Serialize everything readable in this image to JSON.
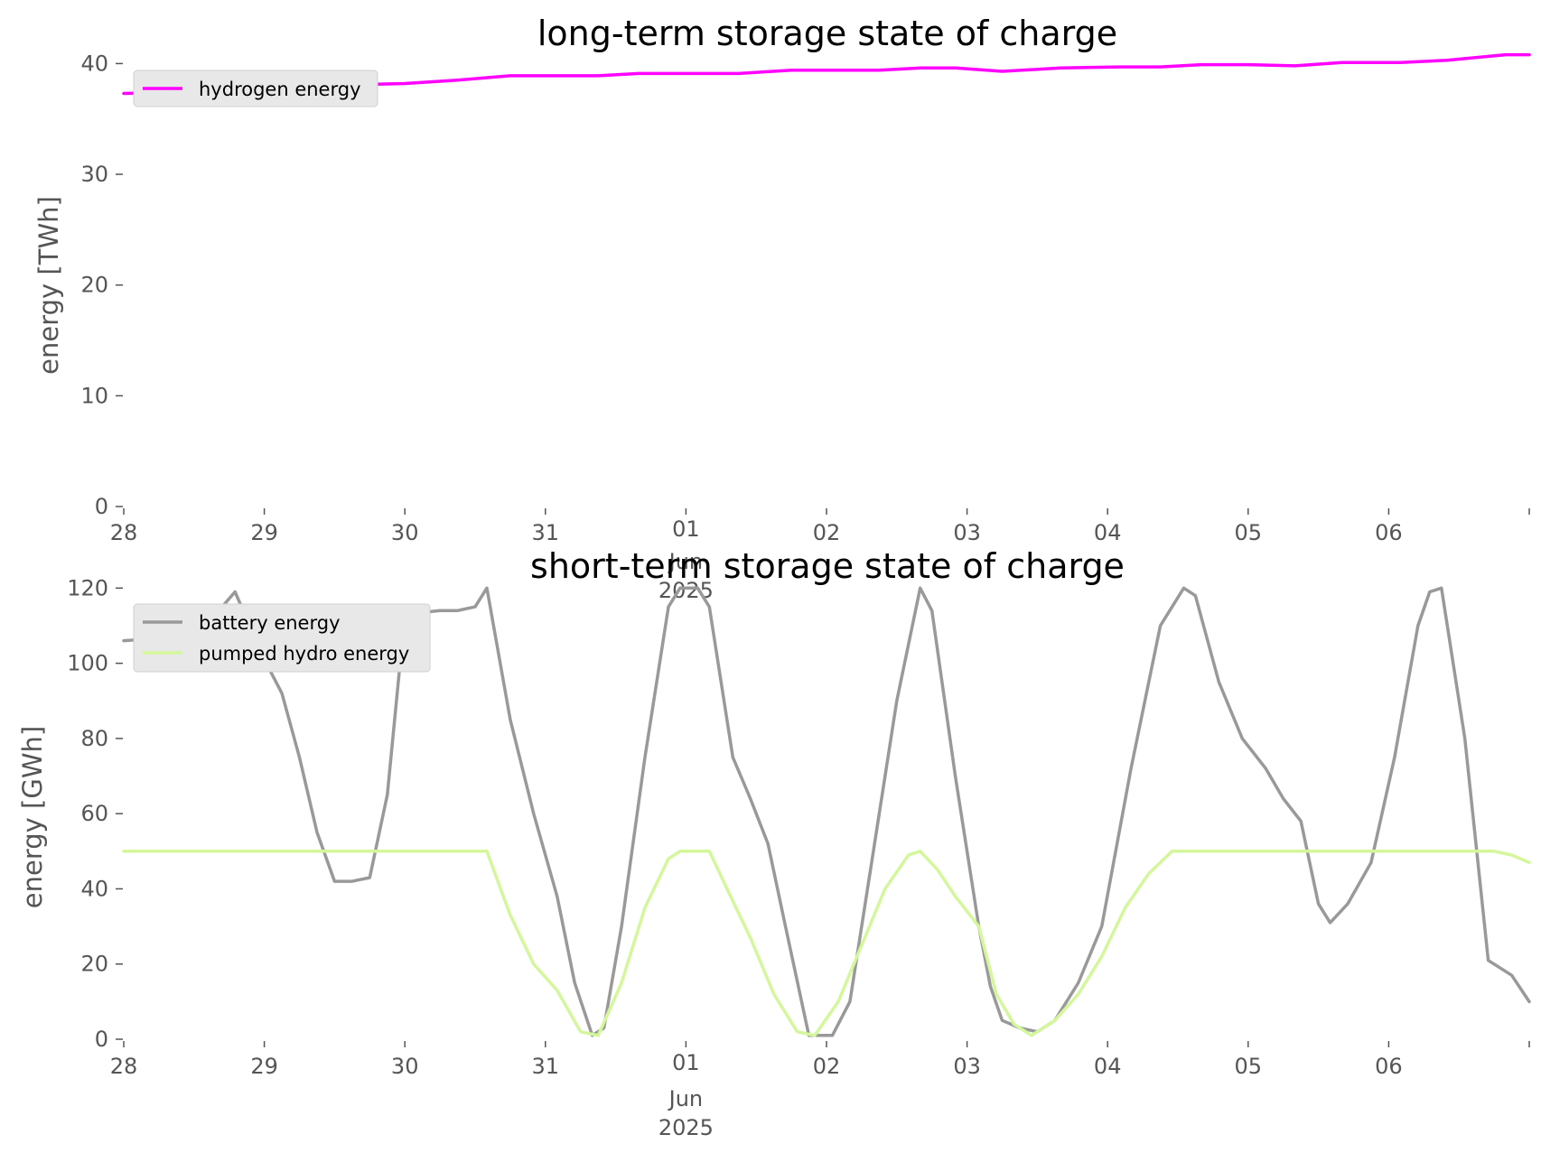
{
  "chart_data": [
    {
      "type": "line",
      "title": "long-term storage state of charge",
      "xlabel": "",
      "ylabel": "energy [TWh]",
      "ylim": [
        0,
        41.5
      ],
      "yticks": [
        0,
        10,
        20,
        30,
        40
      ],
      "xlim": [
        "2025-05-28",
        "2025-06-07"
      ],
      "xticks": [
        {
          "date": "2025-05-28",
          "label": "28"
        },
        {
          "date": "2025-05-29",
          "label": "29"
        },
        {
          "date": "2025-05-30",
          "label": "30"
        },
        {
          "date": "2025-05-31",
          "label": "31"
        },
        {
          "date": "2025-06-01",
          "label": "01",
          "sub": [
            "Jun",
            "2025"
          ]
        },
        {
          "date": "2025-06-02",
          "label": "02"
        },
        {
          "date": "2025-06-03",
          "label": "03"
        },
        {
          "date": "2025-06-04",
          "label": "04"
        },
        {
          "date": "2025-06-05",
          "label": "05"
        },
        {
          "date": "2025-06-06",
          "label": "06"
        },
        {
          "date": "2025-06-07",
          "label": ""
        }
      ],
      "grid": false,
      "legend": "top-left",
      "series": [
        {
          "name": "hydrogen energy",
          "color": "#ff00ff",
          "points": [
            [
              "2025-05-28 00:00",
              37.3
            ],
            [
              "2025-05-28 08:00",
              37.4
            ],
            [
              "2025-05-28 18:00",
              37.7
            ],
            [
              "2025-05-29 09:00",
              37.8
            ],
            [
              "2025-05-29 16:00",
              38.1
            ],
            [
              "2025-05-30 00:00",
              38.2
            ],
            [
              "2025-05-30 09:00",
              38.5
            ],
            [
              "2025-05-30 18:00",
              38.9
            ],
            [
              "2025-05-31 09:00",
              38.9
            ],
            [
              "2025-05-31 16:00",
              39.1
            ],
            [
              "2025-06-01 00:00",
              39.1
            ],
            [
              "2025-06-01 09:00",
              39.1
            ],
            [
              "2025-06-01 18:00",
              39.4
            ],
            [
              "2025-06-02 09:00",
              39.4
            ],
            [
              "2025-06-02 16:00",
              39.6
            ],
            [
              "2025-06-02 22:00",
              39.6
            ],
            [
              "2025-06-03 06:00",
              39.3
            ],
            [
              "2025-06-03 16:00",
              39.6
            ],
            [
              "2025-06-04 02:00",
              39.7
            ],
            [
              "2025-06-04 09:00",
              39.7
            ],
            [
              "2025-06-04 16:00",
              39.9
            ],
            [
              "2025-06-05 00:00",
              39.9
            ],
            [
              "2025-06-05 08:00",
              39.8
            ],
            [
              "2025-06-05 16:00",
              40.1
            ],
            [
              "2025-06-06 02:00",
              40.1
            ],
            [
              "2025-06-06 10:00",
              40.3
            ],
            [
              "2025-06-06 20:00",
              40.8
            ],
            [
              "2025-06-07 00:00",
              40.8
            ]
          ]
        }
      ]
    },
    {
      "type": "line",
      "title": "short-term storage state of charge",
      "xlabel": "",
      "ylabel": "energy [GWh]",
      "ylim": [
        0,
        122
      ],
      "yticks": [
        0,
        20,
        40,
        60,
        80,
        100,
        120
      ],
      "xlim": [
        "2025-05-28",
        "2025-06-07"
      ],
      "xticks": [
        {
          "date": "2025-05-28",
          "label": "28"
        },
        {
          "date": "2025-05-29",
          "label": "29"
        },
        {
          "date": "2025-05-30",
          "label": "30"
        },
        {
          "date": "2025-05-31",
          "label": "31"
        },
        {
          "date": "2025-06-01",
          "label": "01",
          "sub": [
            "Jun",
            "2025"
          ]
        },
        {
          "date": "2025-06-02",
          "label": "02"
        },
        {
          "date": "2025-06-03",
          "label": "03"
        },
        {
          "date": "2025-06-04",
          "label": "04"
        },
        {
          "date": "2025-06-05",
          "label": "05"
        },
        {
          "date": "2025-06-06",
          "label": "06"
        },
        {
          "date": "2025-06-07",
          "label": ""
        }
      ],
      "grid": false,
      "legend": "top-left",
      "series": [
        {
          "name": "battery energy",
          "color": "#999999",
          "points": [
            [
              "2025-05-28 00:00",
              106
            ],
            [
              "2025-05-28 09:00",
              107
            ],
            [
              "2025-05-28 14:00",
              110
            ],
            [
              "2025-05-28 19:00",
              119
            ],
            [
              "2025-05-29 00:00",
              101
            ],
            [
              "2025-05-29 03:00",
              92
            ],
            [
              "2025-05-29 06:00",
              75
            ],
            [
              "2025-05-29 09:00",
              55
            ],
            [
              "2025-05-29 12:00",
              42
            ],
            [
              "2025-05-29 15:00",
              42
            ],
            [
              "2025-05-29 18:00",
              43
            ],
            [
              "2025-05-29 21:00",
              65
            ],
            [
              "2025-05-30 00:00",
              113
            ],
            [
              "2025-05-30 06:00",
              114
            ],
            [
              "2025-05-30 09:00",
              114
            ],
            [
              "2025-05-30 12:00",
              115
            ],
            [
              "2025-05-30 14:00",
              120
            ],
            [
              "2025-05-30 18:00",
              85
            ],
            [
              "2025-05-30 22:00",
              60
            ],
            [
              "2025-05-31 02:00",
              38
            ],
            [
              "2025-05-31 05:00",
              15
            ],
            [
              "2025-05-31 08:00",
              1
            ],
            [
              "2025-05-31 10:00",
              3
            ],
            [
              "2025-05-31 13:00",
              30
            ],
            [
              "2025-05-31 17:00",
              75
            ],
            [
              "2025-05-31 21:00",
              115
            ],
            [
              "2025-05-31 23:00",
              120
            ],
            [
              "2025-06-01 02:00",
              120
            ],
            [
              "2025-06-01 04:00",
              115
            ],
            [
              "2025-06-01 08:00",
              75
            ],
            [
              "2025-06-01 11:00",
              64
            ],
            [
              "2025-06-01 14:00",
              52
            ],
            [
              "2025-06-01 17:00",
              30
            ],
            [
              "2025-06-01 21:00",
              1
            ],
            [
              "2025-06-02 01:00",
              1
            ],
            [
              "2025-06-02 04:00",
              10
            ],
            [
              "2025-06-02 08:00",
              50
            ],
            [
              "2025-06-02 12:00",
              90
            ],
            [
              "2025-06-02 16:00",
              120
            ],
            [
              "2025-06-02 18:00",
              114
            ],
            [
              "2025-06-02 22:00",
              70
            ],
            [
              "2025-06-03 02:00",
              30
            ],
            [
              "2025-06-03 04:00",
              14
            ],
            [
              "2025-06-03 06:00",
              5
            ],
            [
              "2025-06-03 09:00",
              3
            ],
            [
              "2025-06-03 12:00",
              2
            ],
            [
              "2025-06-03 15:00",
              5
            ],
            [
              "2025-06-03 19:00",
              15
            ],
            [
              "2025-06-03 23:00",
              30
            ],
            [
              "2025-06-04 04:00",
              72
            ],
            [
              "2025-06-04 09:00",
              110
            ],
            [
              "2025-06-04 13:00",
              120
            ],
            [
              "2025-06-04 15:00",
              118
            ],
            [
              "2025-06-04 19:00",
              95
            ],
            [
              "2025-06-04 23:00",
              80
            ],
            [
              "2025-06-05 03:00",
              72
            ],
            [
              "2025-06-05 06:00",
              64
            ],
            [
              "2025-06-05 09:00",
              58
            ],
            [
              "2025-06-05 12:00",
              36
            ],
            [
              "2025-06-05 14:00",
              31
            ],
            [
              "2025-06-05 17:00",
              36
            ],
            [
              "2025-06-05 21:00",
              47
            ],
            [
              "2025-06-06 01:00",
              75
            ],
            [
              "2025-06-06 05:00",
              110
            ],
            [
              "2025-06-06 07:00",
              119
            ],
            [
              "2025-06-06 09:00",
              120
            ],
            [
              "2025-06-06 13:00",
              80
            ],
            [
              "2025-06-06 17:00",
              21
            ],
            [
              "2025-06-06 21:00",
              17
            ],
            [
              "2025-06-07 00:00",
              10
            ]
          ]
        },
        {
          "name": "pumped hydro energy",
          "color": "#d4f79c",
          "points": [
            [
              "2025-05-28 00:00",
              50
            ],
            [
              "2025-05-29 00:00",
              50
            ],
            [
              "2025-05-29 12:00",
              50
            ],
            [
              "2025-05-30 00:00",
              50
            ],
            [
              "2025-05-30 14:00",
              50
            ],
            [
              "2025-05-30 18:00",
              33
            ],
            [
              "2025-05-30 22:00",
              20
            ],
            [
              "2025-05-31 02:00",
              13
            ],
            [
              "2025-05-31 06:00",
              2
            ],
            [
              "2025-05-31 09:00",
              1
            ],
            [
              "2025-05-31 13:00",
              15
            ],
            [
              "2025-05-31 17:00",
              35
            ],
            [
              "2025-05-31 21:00",
              48
            ],
            [
              "2025-05-31 23:00",
              50
            ],
            [
              "2025-06-01 04:00",
              50
            ],
            [
              "2025-06-01 07:00",
              40
            ],
            [
              "2025-06-01 11:00",
              27
            ],
            [
              "2025-06-01 15:00",
              12
            ],
            [
              "2025-06-01 19:00",
              2
            ],
            [
              "2025-06-01 22:00",
              1
            ],
            [
              "2025-06-02 02:00",
              10
            ],
            [
              "2025-06-02 06:00",
              25
            ],
            [
              "2025-06-02 10:00",
              40
            ],
            [
              "2025-06-02 14:00",
              49
            ],
            [
              "2025-06-02 16:00",
              50
            ],
            [
              "2025-06-02 19:00",
              45
            ],
            [
              "2025-06-02 22:00",
              38
            ],
            [
              "2025-06-03 02:00",
              30
            ],
            [
              "2025-06-03 05:00",
              12
            ],
            [
              "2025-06-03 08:00",
              4
            ],
            [
              "2025-06-03 11:00",
              1
            ],
            [
              "2025-06-03 15:00",
              5
            ],
            [
              "2025-06-03 19:00",
              12
            ],
            [
              "2025-06-03 23:00",
              22
            ],
            [
              "2025-06-04 03:00",
              35
            ],
            [
              "2025-06-04 07:00",
              44
            ],
            [
              "2025-06-04 11:00",
              50
            ],
            [
              "2025-06-04 18:00",
              50
            ],
            [
              "2025-06-05 06:00",
              50
            ],
            [
              "2025-06-05 12:00",
              50
            ],
            [
              "2025-06-05 18:00",
              50
            ],
            [
              "2025-06-06 00:00",
              50
            ],
            [
              "2025-06-06 12:00",
              50
            ],
            [
              "2025-06-06 18:00",
              50
            ],
            [
              "2025-06-06 21:00",
              49
            ],
            [
              "2025-06-07 00:00",
              47
            ]
          ]
        }
      ]
    }
  ]
}
